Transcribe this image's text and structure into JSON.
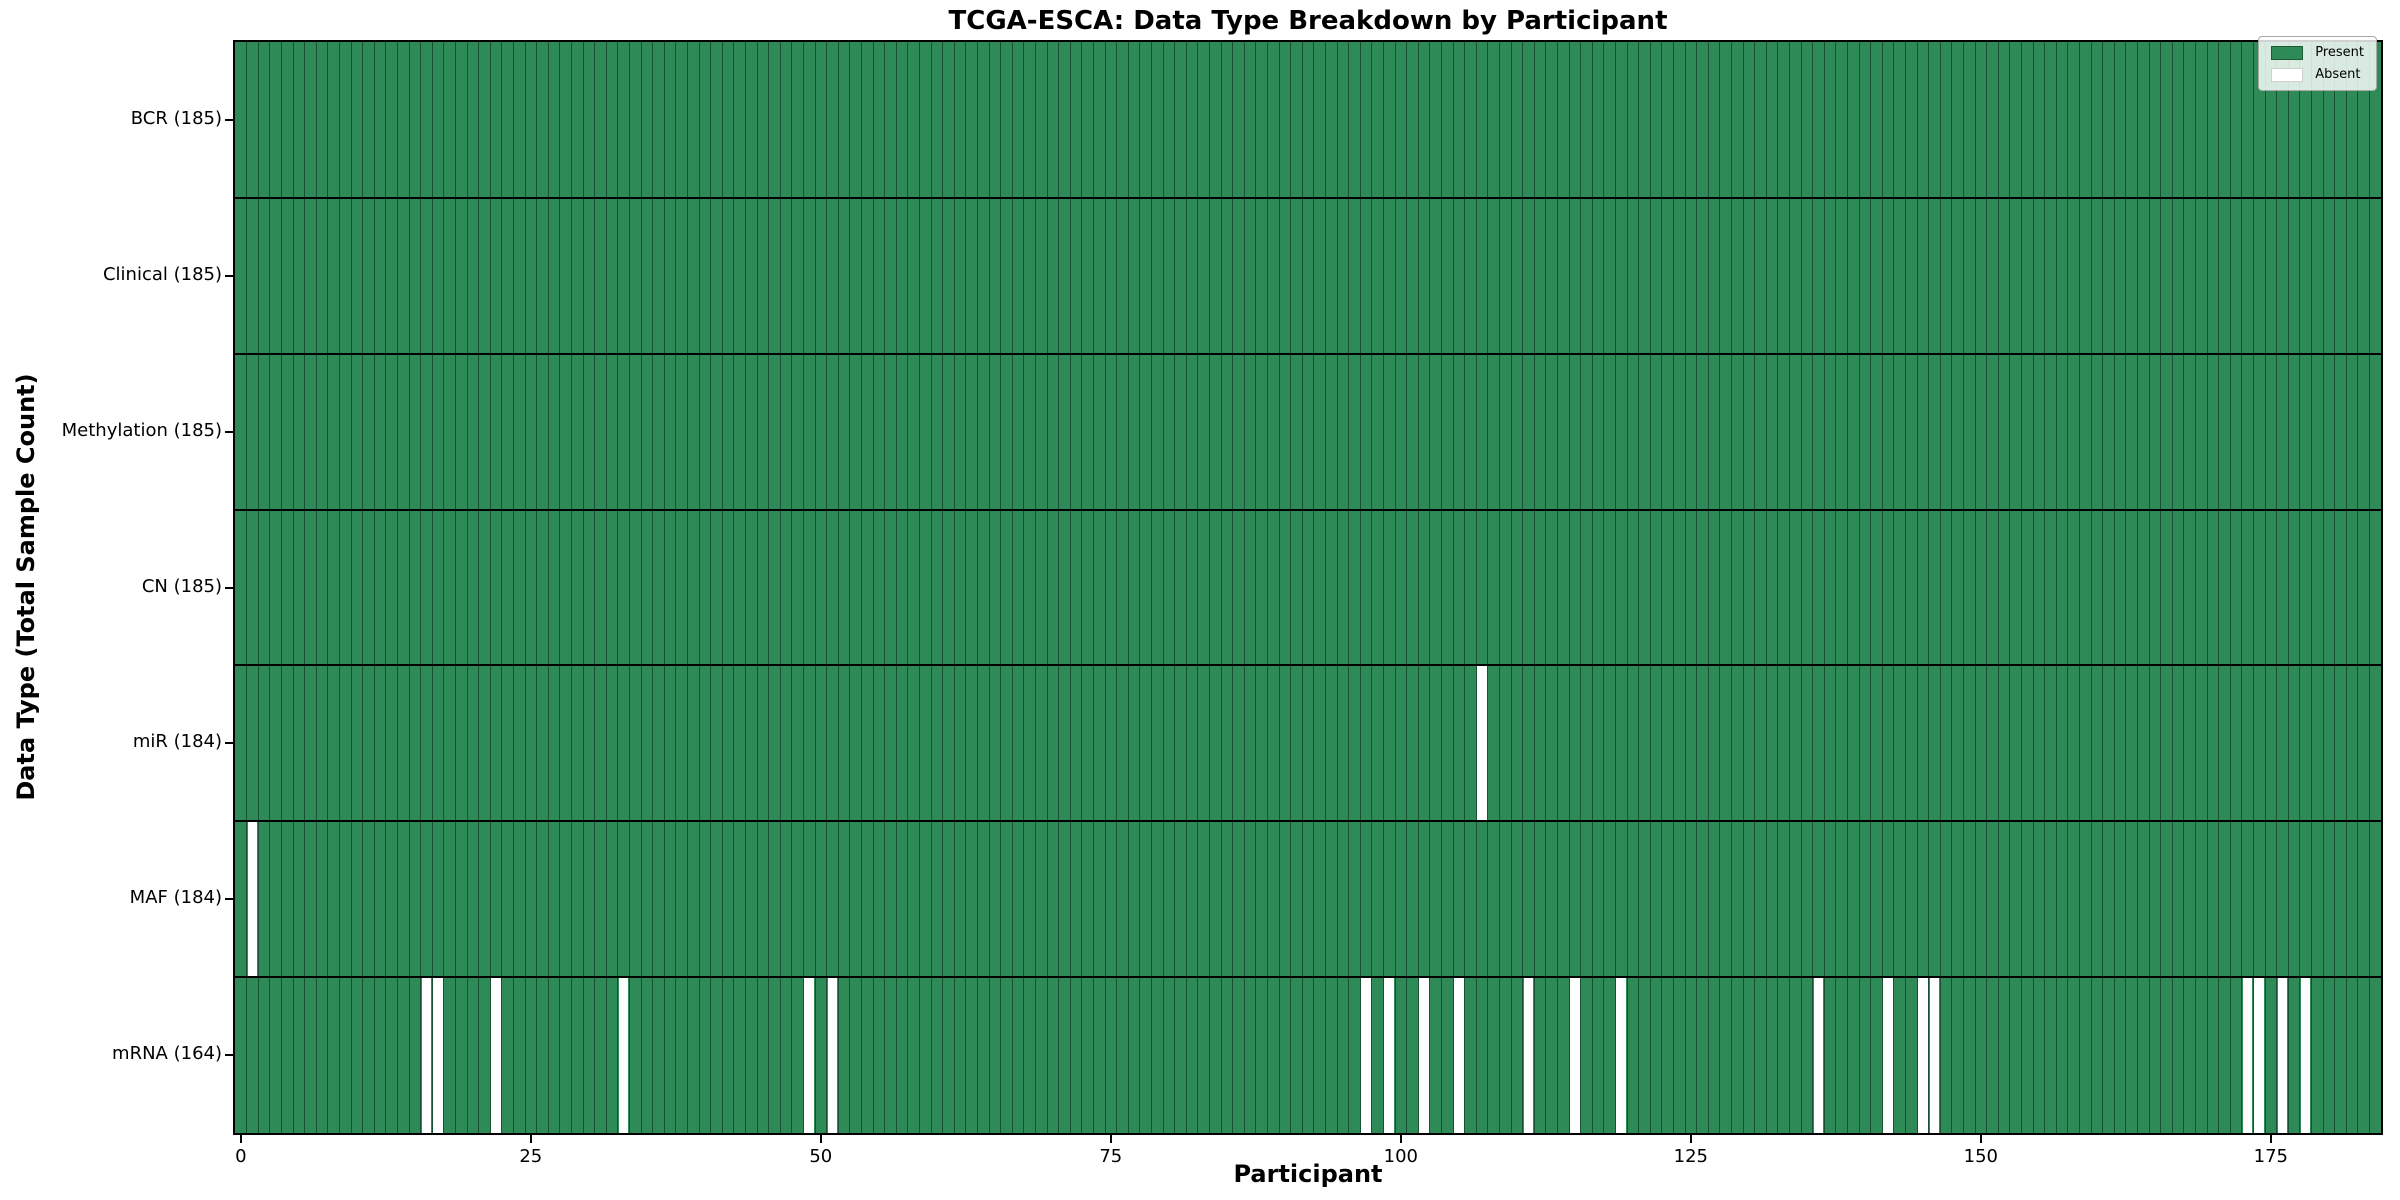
{
  "chart_data": {
    "type": "heatmap",
    "title": "TCGA-ESCA: Data Type Breakdown by Participant",
    "xlabel": "Participant",
    "ylabel": "Data Type (Total Sample Count)",
    "n_participants": 185,
    "x_ticks": [
      0,
      25,
      50,
      75,
      100,
      125,
      150,
      175
    ],
    "grid": true,
    "legend_position": "upper right",
    "legend": [
      {
        "label": "Present",
        "color": "#2e8b57"
      },
      {
        "label": "Absent",
        "color": "#ffffff"
      }
    ],
    "colors": {
      "present": "#2e8b57",
      "absent": "#ffffff",
      "cell_edge": "rgba(8,42,25,0.6)",
      "separator": "#000000"
    },
    "rows": [
      {
        "label": "BCR (185)",
        "data_type": "BCR",
        "total_sample_count": 185,
        "absent_participants": []
      },
      {
        "label": "Clinical (185)",
        "data_type": "Clinical",
        "total_sample_count": 185,
        "absent_participants": []
      },
      {
        "label": "Methylation (185)",
        "data_type": "Methylation",
        "total_sample_count": 185,
        "absent_participants": []
      },
      {
        "label": "CN (185)",
        "data_type": "CN",
        "total_sample_count": 185,
        "absent_participants": []
      },
      {
        "label": "miR (184)",
        "data_type": "miR",
        "total_sample_count": 184,
        "absent_participants": [
          107
        ]
      },
      {
        "label": "MAF (184)",
        "data_type": "MAF",
        "total_sample_count": 184,
        "absent_participants": [
          1
        ]
      },
      {
        "label": "mRNA (164)",
        "data_type": "mRNA",
        "total_sample_count": 164,
        "absent_participants": [
          16,
          17,
          22,
          33,
          49,
          51,
          97,
          99,
          102,
          105,
          111,
          115,
          119,
          136,
          142,
          145,
          146,
          173,
          174,
          176,
          178
        ]
      }
    ]
  }
}
